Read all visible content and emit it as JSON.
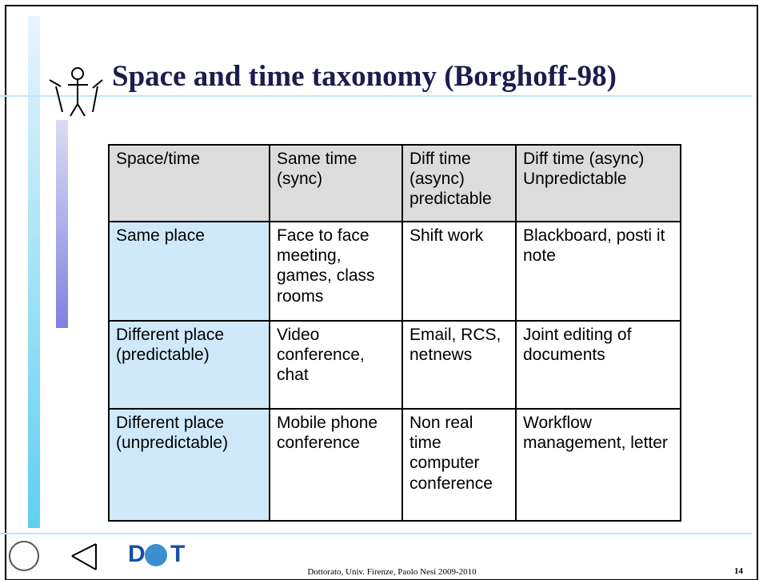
{
  "title": "Space and time taxonomy (Borghoff-98)",
  "table": {
    "rows": [
      [
        "Space/time",
        "Same time (sync)",
        "Diff time (async) predictable",
        "Diff time (async) Unpredictable"
      ],
      [
        "Same place",
        "Face to face meeting, games, class rooms",
        "Shift work",
        "Blackboard, posti it note"
      ],
      [
        "Different place (predictable)",
        "Video conference, chat",
        "Email, RCS, netnews",
        "Joint editing of documents"
      ],
      [
        "Different place (unpredictable)",
        "Mobile phone conference",
        "Non real time computer conference",
        "Workflow management, letter"
      ]
    ]
  },
  "logo": {
    "left": "D",
    "right": "T"
  },
  "footer": "Dottorato, Univ. Firenze, Paolo Nesi 2009-2010",
  "page_number": "14"
}
